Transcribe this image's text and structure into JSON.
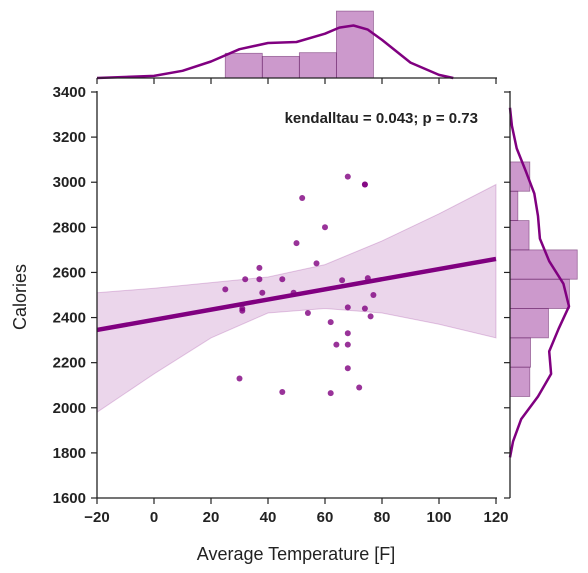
{
  "chart_data": {
    "type": "scatter",
    "xlabel": "Average Temperature [F]",
    "ylabel": "Calories",
    "xlim": [
      -20,
      120
    ],
    "ylim": [
      1600,
      3400
    ],
    "xticks": [
      "−20",
      "0",
      "20",
      "40",
      "60",
      "80",
      "100",
      "120"
    ],
    "yticks": [
      "1600",
      "1800",
      "2000",
      "2200",
      "2400",
      "2600",
      "2800",
      "3000",
      "3200",
      "3400"
    ],
    "annotation": "kendalltau = 0.043; p = 0.73",
    "color": "#800080",
    "points": [
      [
        25,
        2525
      ],
      [
        30,
        2130
      ],
      [
        31,
        2440
      ],
      [
        31,
        2430
      ],
      [
        32,
        2570
      ],
      [
        37,
        2620
      ],
      [
        37,
        2570
      ],
      [
        38,
        2510
      ],
      [
        45,
        2570
      ],
      [
        45,
        2070
      ],
      [
        49,
        2510
      ],
      [
        50,
        2730
      ],
      [
        52,
        2930
      ],
      [
        54,
        2420
      ],
      [
        57,
        2640
      ],
      [
        60,
        2800
      ],
      [
        62,
        2380
      ],
      [
        62,
        2065
      ],
      [
        64,
        2280
      ],
      [
        66,
        2565
      ],
      [
        68,
        3025
      ],
      [
        68,
        2445
      ],
      [
        68,
        2330
      ],
      [
        68,
        2280
      ],
      [
        68,
        2175
      ],
      [
        72,
        2090
      ],
      [
        74,
        2990
      ],
      [
        74,
        2990
      ],
      [
        74,
        2440
      ],
      [
        75,
        2575
      ],
      [
        76,
        2405
      ],
      [
        77,
        2500
      ]
    ],
    "regression": {
      "x": [
        -20,
        120
      ],
      "y": [
        2345,
        2660
      ]
    },
    "confidence_band": {
      "x": [
        -20,
        0,
        20,
        40,
        60,
        80,
        100,
        120
      ],
      "upper": [
        2510,
        2530,
        2555,
        2580,
        2635,
        2740,
        2860,
        2990
      ],
      "lower": [
        1980,
        2150,
        2310,
        2420,
        2440,
        2420,
        2370,
        2310
      ]
    },
    "top_histogram": {
      "bins": [
        [
          25,
          38,
          0.012
        ],
        [
          38,
          51,
          0.0105
        ],
        [
          51,
          64,
          0.0123
        ],
        [
          64,
          77,
          0.0325
        ]
      ],
      "kde_x": [
        -20,
        0,
        10,
        20,
        30,
        40,
        50,
        60,
        65,
        70,
        75,
        80,
        90,
        100,
        105
      ],
      "kde_y": [
        0,
        0.001,
        0.0035,
        0.008,
        0.014,
        0.017,
        0.0175,
        0.0215,
        0.0245,
        0.0255,
        0.0235,
        0.0185,
        0.0075,
        0.0015,
        0
      ]
    },
    "right_histogram": {
      "bins": [
        [
          2050,
          2180,
          0.00053
        ],
        [
          2180,
          2310,
          0.00055
        ],
        [
          2310,
          2440,
          0.00103
        ],
        [
          2440,
          2570,
          0.00159
        ],
        [
          2570,
          2700,
          0.0018
        ],
        [
          2700,
          2830,
          0.00051
        ],
        [
          2830,
          2960,
          0.00021
        ],
        [
          2960,
          3090,
          0.00053
        ]
      ],
      "kde_y": [
        1780,
        1850,
        1950,
        2050,
        2150,
        2250,
        2350,
        2450,
        2550,
        2650,
        2750,
        2850,
        2950,
        3050,
        3150,
        3250,
        3330
      ],
      "kde_d": [
        0,
        8e-05,
        0.0003,
        0.00075,
        0.0011,
        0.00105,
        0.0013,
        0.00158,
        0.00143,
        0.00105,
        0.0008,
        0.00075,
        0.00065,
        0.00042,
        0.00018,
        5e-05,
        0
      ]
    }
  }
}
